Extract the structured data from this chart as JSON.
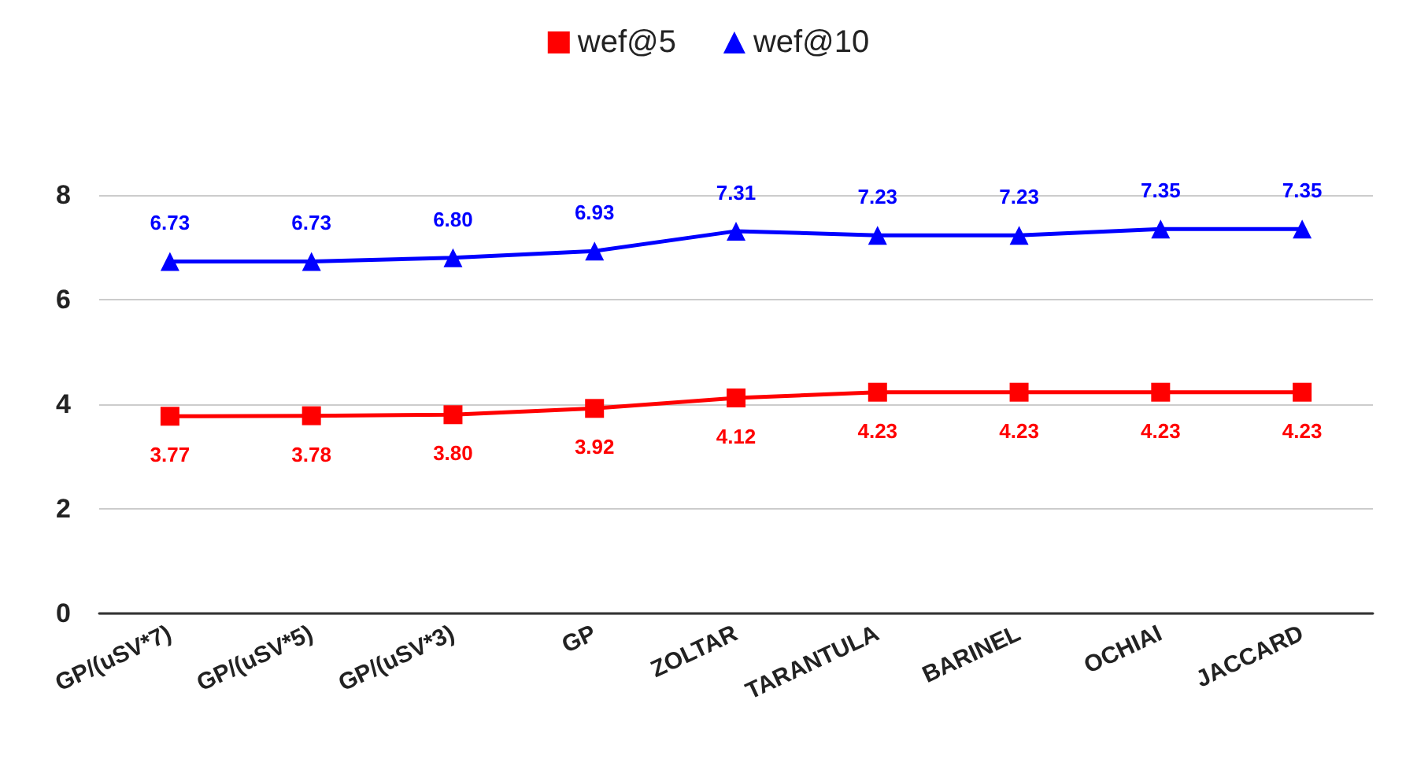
{
  "chart_data": {
    "type": "line",
    "categories": [
      "GP/(uSV*7)",
      "GP/(uSV*5)",
      "GP/(uSV*3)",
      "GP",
      "ZOLTAR",
      "TARANTULA",
      "BARINEL",
      "OCHIAI",
      "JACCARD"
    ],
    "series": [
      {
        "name": "wef@5",
        "color": "#ff0000",
        "marker": "square",
        "values": [
          3.77,
          3.78,
          3.8,
          3.92,
          4.12,
          4.23,
          4.23,
          4.23,
          4.23
        ],
        "value_labels": [
          "3.77",
          "3.78",
          "3.80",
          "3.92",
          "4.12",
          "4.23",
          "4.23",
          "4.23",
          "4.23"
        ]
      },
      {
        "name": "wef@10",
        "color": "#0000ff",
        "marker": "triangle",
        "values": [
          6.73,
          6.73,
          6.8,
          6.93,
          7.31,
          7.23,
          7.23,
          7.35,
          7.35
        ],
        "value_labels": [
          "6.73",
          "6.73",
          "6.80",
          "6.93",
          "7.31",
          "7.23",
          "7.23",
          "7.35",
          "7.35"
        ]
      }
    ],
    "ylim": [
      0,
      8
    ],
    "yticks": [
      0,
      2,
      4,
      6,
      8
    ],
    "grid": "y",
    "legend": "top"
  }
}
